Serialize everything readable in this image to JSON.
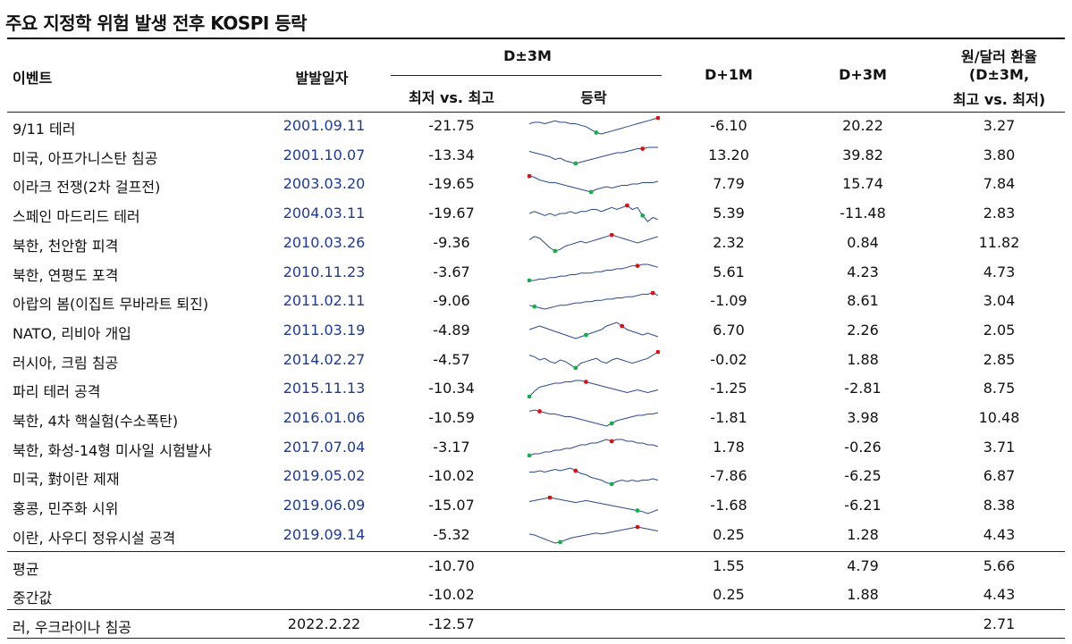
{
  "title": "주요 지정학 위험 발생 전후 KOSPI 등락",
  "headers": {
    "event": "이벤트",
    "date": "발발일자",
    "group": "D±3M",
    "min_vs_max": "최저 vs. 최고",
    "trend": "등락",
    "d1": "D+1M",
    "d3": "D+3M",
    "fx_line1": "원/달러 환율",
    "fx_line2": "(D±3M,",
    "fx_line3": "최고 vs. 최저)"
  },
  "rows": [
    {
      "event": "9/11 테러",
      "date": "2001.09.11",
      "min": "-21.75",
      "d1": "-6.10",
      "d3": "20.22",
      "fx": "3.27",
      "trend": [
        6,
        5,
        5,
        6,
        5,
        4,
        5,
        5,
        6,
        6,
        7,
        8,
        10,
        12,
        13,
        12,
        11,
        10,
        9,
        8,
        7,
        6,
        5,
        4,
        3,
        2
      ],
      "maxi": 25,
      "mini": 13
    },
    {
      "event": "미국, 아프가니스탄 침공",
      "date": "2001.10.07",
      "min": "-13.34",
      "d1": "13.20",
      "d3": "39.82",
      "fx": "3.80",
      "trend": [
        6,
        7,
        8,
        9,
        10,
        12,
        11,
        13,
        14,
        15,
        14,
        13,
        12,
        11,
        10,
        9,
        8,
        7,
        7,
        6,
        5,
        4,
        4,
        3,
        3,
        3
      ],
      "maxi": 22,
      "mini": 9
    },
    {
      "event": "이라크 전쟁(2차 걸프전)",
      "date": "2003.03.20",
      "min": "-19.65",
      "d1": "7.79",
      "d3": "15.74",
      "fx": "7.84",
      "trend": [
        2,
        3,
        5,
        6,
        7,
        7,
        8,
        9,
        10,
        11,
        12,
        13,
        14,
        12,
        11,
        10,
        11,
        10,
        9,
        9,
        8,
        8,
        7,
        7,
        7,
        6
      ],
      "maxi": 0,
      "mini": 12
    },
    {
      "event": "스페인 마드리드 테러",
      "date": "2004.03.11",
      "min": "-19.67",
      "d1": "5.39",
      "d3": "-11.48",
      "fx": "2.83",
      "trend": [
        7,
        6,
        7,
        8,
        7,
        8,
        7,
        7,
        6,
        7,
        6,
        6,
        5,
        5,
        6,
        5,
        4,
        5,
        4,
        3,
        5,
        4,
        8,
        11,
        9,
        10
      ],
      "maxi": 19,
      "mini": 22
    },
    {
      "event": "북한, 천안함 피격",
      "date": "2010.03.26",
      "min": "-9.36",
      "d1": "2.32",
      "d3": "0.84",
      "fx": "11.82",
      "trend": [
        7,
        5,
        6,
        9,
        12,
        14,
        13,
        11,
        10,
        9,
        8,
        9,
        8,
        7,
        6,
        5,
        4,
        5,
        6,
        7,
        8,
        9,
        8,
        7,
        6,
        5
      ],
      "maxi": 16,
      "mini": 5
    },
    {
      "event": "북한, 연평도 포격",
      "date": "2010.11.23",
      "min": "-3.67",
      "d1": "5.61",
      "d3": "4.23",
      "fx": "4.73",
      "trend": [
        14,
        14,
        13,
        13,
        12,
        12,
        11,
        11,
        10,
        10,
        9,
        9,
        9,
        8,
        8,
        7,
        7,
        6,
        6,
        5,
        4,
        4,
        3,
        3,
        4,
        5
      ],
      "maxi": 21,
      "mini": 0
    },
    {
      "event": "아랍의 봄(이집트 무바라트 퇴진)",
      "date": "2011.02.11",
      "min": "-9.06",
      "d1": "-1.09",
      "d3": "8.61",
      "fx": "3.04",
      "trend": [
        12,
        13,
        14,
        15,
        14,
        13,
        12,
        12,
        11,
        10,
        10,
        9,
        9,
        8,
        8,
        7,
        7,
        6,
        6,
        5,
        5,
        4,
        3,
        3,
        2,
        4
      ],
      "maxi": 24,
      "mini": 1
    },
    {
      "event": "NATO, 리비아 개입",
      "date": "2011.03.19",
      "min": "-4.89",
      "d1": "6.70",
      "d3": "2.26",
      "fx": "2.05",
      "trend": [
        8,
        7,
        6,
        7,
        8,
        9,
        10,
        11,
        12,
        13,
        12,
        11,
        10,
        9,
        8,
        6,
        5,
        4,
        6,
        8,
        9,
        10,
        11,
        10,
        11,
        12
      ],
      "maxi": 18,
      "mini": 11
    },
    {
      "event": "러시아, 크림 침공",
      "date": "2014.02.27",
      "min": "-4.57",
      "d1": "-0.02",
      "d3": "1.88",
      "fx": "2.85",
      "trend": [
        5,
        6,
        8,
        7,
        9,
        10,
        8,
        9,
        11,
        13,
        10,
        9,
        8,
        7,
        9,
        10,
        8,
        7,
        8,
        9,
        10,
        9,
        8,
        7,
        5,
        3
      ],
      "maxi": 25,
      "mini": 9
    },
    {
      "event": "파리 테러 공격",
      "date": "2015.11.13",
      "min": "-10.34",
      "d1": "-1.25",
      "d3": "-2.81",
      "fx": "8.75",
      "trend": [
        16,
        12,
        9,
        8,
        7,
        6,
        6,
        5,
        5,
        4,
        4,
        5,
        6,
        7,
        8,
        9,
        10,
        11,
        12,
        13,
        12,
        11,
        12,
        13,
        12,
        11
      ],
      "maxi": 11,
      "mini": 0
    },
    {
      "event": "북한, 4차 핵실험(수소폭탄)",
      "date": "2016.01.06",
      "min": "-10.59",
      "d1": "-1.81",
      "d3": "3.98",
      "fx": "10.48",
      "trend": [
        5,
        4,
        5,
        6,
        7,
        7,
        8,
        9,
        9,
        10,
        11,
        12,
        13,
        14,
        15,
        16,
        14,
        12,
        11,
        10,
        9,
        8,
        8,
        7,
        7,
        6
      ],
      "maxi": 2,
      "mini": 16
    },
    {
      "event": "북한, 화성-14형 미사일 시험발사",
      "date": "2017.07.04",
      "min": "-3.17",
      "d1": "1.78",
      "d3": "-0.26",
      "fx": "3.71",
      "trend": [
        14,
        13,
        13,
        12,
        12,
        11,
        11,
        10,
        10,
        9,
        8,
        8,
        7,
        7,
        6,
        5,
        6,
        5,
        5,
        6,
        6,
        7,
        7,
        8,
        8,
        9
      ],
      "maxi": 16,
      "mini": 0
    },
    {
      "event": "미국, 對이란 제재",
      "date": "2019.05.02",
      "min": "-10.02",
      "d1": "-7.86",
      "d3": "-6.25",
      "fx": "6.87",
      "trend": [
        6,
        6,
        5,
        6,
        5,
        4,
        5,
        4,
        3,
        5,
        7,
        8,
        10,
        11,
        12,
        14,
        15,
        13,
        12,
        13,
        12,
        13,
        12,
        12,
        11,
        12
      ],
      "maxi": 9,
      "mini": 16
    },
    {
      "event": "홍콩, 민주화 시위",
      "date": "2019.06.09",
      "min": "-15.07",
      "d1": "-1.68",
      "d3": "-6.21",
      "fx": "8.38",
      "trend": [
        6,
        5,
        4,
        3,
        2,
        3,
        4,
        5,
        6,
        7,
        6,
        5,
        6,
        7,
        8,
        9,
        10,
        11,
        12,
        13,
        14,
        15,
        16,
        18,
        16,
        14
      ],
      "maxi": 4,
      "mini": 21
    },
    {
      "event": "이란, 사우디 정유시설 공격",
      "date": "2019.09.14",
      "min": "-5.32",
      "d1": "0.25",
      "d3": "1.28",
      "fx": "4.43",
      "trend": [
        9,
        10,
        12,
        14,
        16,
        18,
        17,
        15,
        13,
        12,
        11,
        10,
        9,
        8,
        9,
        8,
        7,
        6,
        5,
        4,
        3,
        2,
        3,
        4,
        5,
        6
      ],
      "maxi": 21,
      "mini": 6
    }
  ],
  "summary": [
    {
      "label": "평균",
      "min": "-10.70",
      "d1": "1.55",
      "d3": "4.79",
      "fx": "5.66"
    },
    {
      "label": "중간값",
      "min": "-10.02",
      "d1": "0.25",
      "d3": "1.88",
      "fx": "4.43"
    }
  ],
  "current": {
    "event": "러, 우크라이나 침공",
    "date": "2022.2.22",
    "min": "-12.57",
    "fx": "2.71"
  },
  "colors": {
    "date_text": "#1f3a93",
    "spark_line": "#2b4a8c",
    "max_marker": "#d11",
    "min_marker": "#12b04a"
  }
}
